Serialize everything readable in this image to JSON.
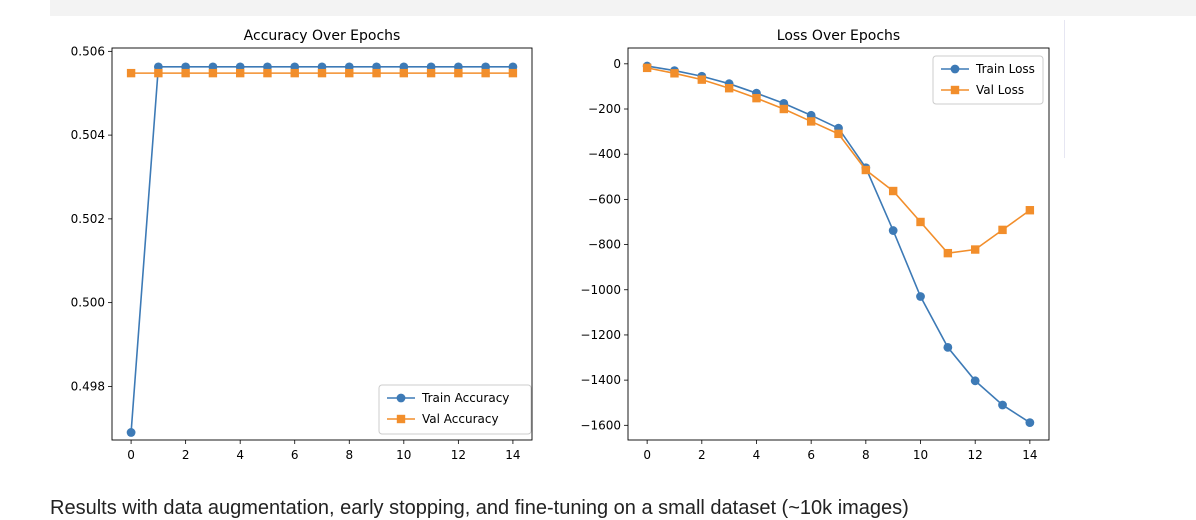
{
  "caption": "Results with data augmentation, early stopping, and fine-tuning on a small dataset (~10k images)",
  "colors": {
    "train": "#3d7ab6",
    "val": "#f28e2b"
  },
  "chart_data": [
    {
      "type": "line",
      "title": "Accuracy Over Epochs",
      "xlabel": "",
      "ylabel": "",
      "x": [
        0,
        1,
        2,
        3,
        4,
        5,
        6,
        7,
        8,
        9,
        10,
        11,
        12,
        13,
        14
      ],
      "xlim": [
        -0.7,
        14.7
      ],
      "ylim": [
        0.49672,
        0.50608
      ],
      "xticks": [
        0,
        2,
        4,
        6,
        8,
        10,
        12,
        14
      ],
      "yticks": [
        0.498,
        0.5,
        0.502,
        0.504,
        0.506
      ],
      "ytick_labels": [
        "0.498",
        "0.500",
        "0.502",
        "0.504",
        "0.506"
      ],
      "grid": false,
      "legend": "lower-right",
      "series": [
        {
          "name": "Train Accuracy",
          "marker": "circle",
          "values": [
            0.4969,
            0.50563,
            0.50563,
            0.50563,
            0.50563,
            0.50563,
            0.50563,
            0.50563,
            0.50563,
            0.50563,
            0.50563,
            0.50563,
            0.50563,
            0.50563,
            0.50563
          ]
        },
        {
          "name": "Val Accuracy",
          "marker": "square",
          "values": [
            0.50548,
            0.50548,
            0.50548,
            0.50548,
            0.50548,
            0.50548,
            0.50548,
            0.50548,
            0.50548,
            0.50548,
            0.50548,
            0.50548,
            0.50548,
            0.50548,
            0.50548
          ]
        }
      ]
    },
    {
      "type": "line",
      "title": "Loss Over Epochs",
      "xlabel": "",
      "ylabel": "",
      "x": [
        0,
        1,
        2,
        3,
        4,
        5,
        6,
        7,
        8,
        9,
        10,
        11,
        12,
        13,
        14
      ],
      "xlim": [
        -0.7,
        14.7
      ],
      "ylim": [
        -1665,
        70
      ],
      "xticks": [
        0,
        2,
        4,
        6,
        8,
        10,
        12,
        14
      ],
      "yticks": [
        0,
        -200,
        -400,
        -600,
        -800,
        -1000,
        -1200,
        -1400,
        -1600
      ],
      "ytick_labels": [
        "0",
        "−200",
        "−400",
        "−600",
        "−800",
        "−1000",
        "−1200",
        "−1400",
        "−1600"
      ],
      "grid": false,
      "legend": "upper-right",
      "series": [
        {
          "name": "Train Loss",
          "marker": "circle",
          "values": [
            -10,
            -30,
            -55,
            -88,
            -130,
            -175,
            -228,
            -285,
            -460,
            -738,
            -1030,
            -1255,
            -1403,
            -1510,
            -1588
          ]
        },
        {
          "name": "Val Loss",
          "marker": "square",
          "values": [
            -18,
            -42,
            -70,
            -108,
            -152,
            -200,
            -255,
            -310,
            -470,
            -563,
            -700,
            -838,
            -822,
            -735,
            -648
          ]
        }
      ]
    }
  ]
}
